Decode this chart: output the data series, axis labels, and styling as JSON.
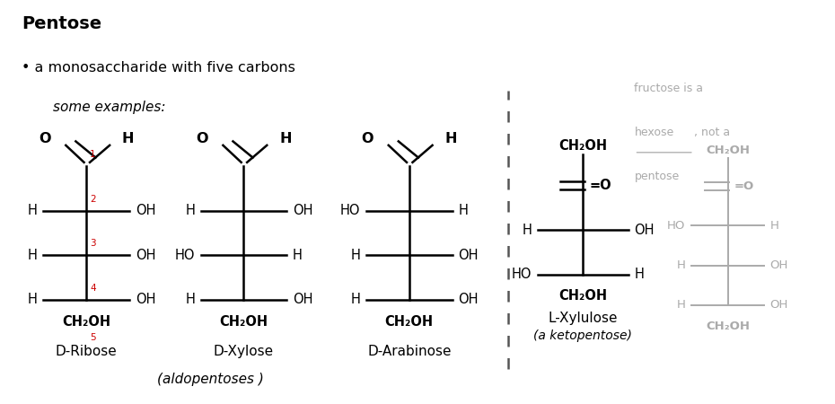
{
  "title": "Pentose",
  "bullet": "a monosaccharide with five carbons",
  "some_examples": "some examples:",
  "bg_color": "#ffffff",
  "text_color": "#000000",
  "red_color": "#cc0000",
  "gray_color": "#aaaaaa",
  "dashed_line_color": "#555555",
  "aldopentoses_label": "(aldopentoses )",
  "ketopentose_label": "(a ketopentose)",
  "ribose_name": "D-Ribose",
  "xylose_name": "D-Xylose",
  "arabinose_name": "D-Arabinose",
  "xylulose_name": "L-Xylulose",
  "fructose_note_line1": "fructose is a",
  "fructose_note_line2": "hexose",
  "fructose_note_line2b": ", not a",
  "fructose_note_line3": "pentose"
}
